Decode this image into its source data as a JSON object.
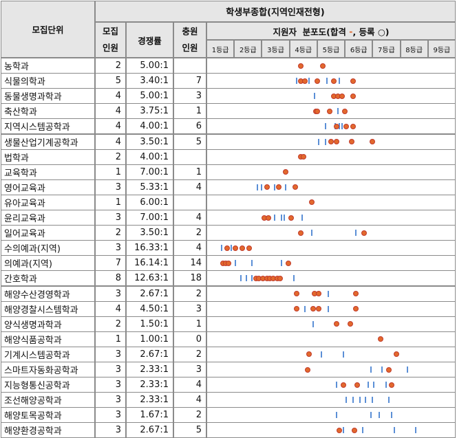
{
  "header": {
    "unit": "모집단위",
    "section": "학생부종합(지역인재전형)",
    "recruit_top": "모집",
    "recruit_bottom": "인원",
    "competition": "경쟁률",
    "fill_top": "충원",
    "fill_bottom": "인원",
    "distribution_prefix": "지원자  분포도(합격 ",
    "distribution_pass_mark": "-",
    "distribution_suffix": ", 등록 ○)",
    "grades": [
      "1등급",
      "2등급",
      "3등급",
      "4등급",
      "5등급",
      "6등급",
      "7등급",
      "8등급",
      "9등급"
    ]
  },
  "colors": {
    "registered": "#e2692d",
    "passed": "#5b8fd6"
  },
  "rows": [
    {
      "name": "농학과",
      "recruit": "2",
      "ratio": "5.00:1",
      "fill": "",
      "reg": [
        4.3,
        5.1
      ],
      "pass": []
    },
    {
      "name": "식물의학과",
      "recruit": "5",
      "ratio": "3.40:1",
      "fill": "7",
      "reg": [
        4.3,
        4.45,
        4.9,
        5.5,
        6.2
      ],
      "pass": [
        4.15,
        4.6,
        5.25,
        5.7
      ]
    },
    {
      "name": "동물생명과학과",
      "recruit": "4",
      "ratio": "5.00:1",
      "fill": "3",
      "reg": [
        5.5,
        5.65,
        5.8,
        6.2
      ],
      "pass": [
        4.8
      ]
    },
    {
      "name": "축산학과",
      "recruit": "4",
      "ratio": "3.75:1",
      "fill": "1",
      "reg": [
        4.85,
        4.9,
        5.35,
        5.9
      ],
      "pass": [
        5.65
      ]
    },
    {
      "name": "지역시스템공학과",
      "recruit": "4",
      "ratio": "4.00:1",
      "fill": "6",
      "reg": [
        5.6,
        5.95,
        6.2
      ],
      "pass": [
        5.2,
        5.55,
        5.7,
        5.8
      ]
    },
    {
      "name": "생물산업기계공학과",
      "recruit": "4",
      "ratio": "3.50:1",
      "fill": "5",
      "reg": [
        5.4,
        5.6,
        6.15,
        6.9
      ],
      "pass": [
        4.95,
        5.2
      ]
    },
    {
      "name": "법학과",
      "recruit": "2",
      "ratio": "4.00:1",
      "fill": "",
      "reg": [
        4.3,
        4.4
      ],
      "pass": []
    },
    {
      "name": "교육학과",
      "recruit": "1",
      "ratio": "7.00:1",
      "fill": "1",
      "reg": [
        3.75
      ],
      "pass": []
    },
    {
      "name": "영어교육과",
      "recruit": "3",
      "ratio": "5.33:1",
      "fill": "4",
      "reg": [
        3.1,
        3.5,
        4.1
      ],
      "pass": [
        2.75,
        2.9,
        3.35,
        3.75
      ]
    },
    {
      "name": "유아교육과",
      "recruit": "1",
      "ratio": "6.00:1",
      "fill": "",
      "reg": [
        4.7
      ],
      "pass": []
    },
    {
      "name": "윤리교육과",
      "recruit": "3",
      "ratio": "7.00:1",
      "fill": "4",
      "reg": [
        3.0,
        3.15,
        3.95
      ],
      "pass": [
        3.35,
        3.6,
        3.7,
        4.35
      ]
    },
    {
      "name": "일어교육과",
      "recruit": "2",
      "ratio": "3.50:1",
      "fill": "2",
      "reg": [
        4.3,
        6.6
      ],
      "pass": [
        4.7,
        6.3
      ]
    },
    {
      "name": "수의예과(지역)",
      "recruit": "3",
      "ratio": "16.33:1",
      "fill": "4",
      "reg": [
        1.65,
        1.95,
        2.2,
        2.45
      ],
      "pass": [
        1.45,
        1.8
      ]
    },
    {
      "name": "의예과(지역)",
      "recruit": "7",
      "ratio": "16.14:1",
      "fill": "14",
      "reg": [
        1.5,
        1.6,
        1.7,
        3.85
      ],
      "pass": [
        1.95,
        2.55,
        3.6
      ]
    },
    {
      "name": "간호학과",
      "recruit": "8",
      "ratio": "12.63:1",
      "fill": "18",
      "reg": [
        2.7,
        2.8,
        2.95,
        3.1,
        3.2,
        3.3,
        3.45,
        3.55
      ],
      "pass": [
        2.15,
        2.35,
        2.55,
        4.05
      ]
    },
    {
      "name": "해양수산경영학과",
      "recruit": "3",
      "ratio": "2.67:1",
      "fill": "2",
      "reg": [
        4.15,
        4.8,
        4.95,
        6.3
      ],
      "pass": [
        5.3
      ]
    },
    {
      "name": "해양경찰시스템학과",
      "recruit": "4",
      "ratio": "4.50:1",
      "fill": "3",
      "reg": [
        4.15,
        4.75,
        4.95,
        6.3
      ],
      "pass": [
        4.45,
        5.3
      ]
    },
    {
      "name": "양식생명과학과",
      "recruit": "2",
      "ratio": "1.50:1",
      "fill": "1",
      "reg": [
        5.6,
        6.1
      ],
      "pass": [
        4.75
      ]
    },
    {
      "name": "해양식품공학과",
      "recruit": "1",
      "ratio": "1.00:1",
      "fill": "0",
      "reg": [
        7.2
      ],
      "pass": []
    },
    {
      "name": "기계시스템공학과",
      "recruit": "3",
      "ratio": "2.67:1",
      "fill": "2",
      "reg": [
        4.6,
        7.75
      ],
      "pass": [
        5.05,
        5.85
      ]
    },
    {
      "name": "스마트자동화공학과",
      "recruit": "3",
      "ratio": "2.33:1",
      "fill": "3",
      "reg": [
        4.55,
        7.5
      ],
      "pass": [
        6.85,
        7.25,
        8.15
      ]
    },
    {
      "name": "지능형통신공학과",
      "recruit": "3",
      "ratio": "2.33:1",
      "fill": "4",
      "reg": [
        5.85,
        6.35,
        7.6
      ],
      "pass": [
        5.6,
        6.75,
        6.95,
        7.4
      ]
    },
    {
      "name": "조선해양공학과",
      "recruit": "3",
      "ratio": "2.33:1",
      "fill": "4",
      "reg": [],
      "pass": [
        5.95,
        6.2,
        6.45,
        6.65,
        6.9,
        7.5
      ]
    },
    {
      "name": "해양토목공학과",
      "recruit": "3",
      "ratio": "1.67:1",
      "fill": "2",
      "reg": [],
      "pass": [
        5.6,
        6.85,
        7.15,
        7.6
      ]
    },
    {
      "name": "해양환경공학과",
      "recruit": "3",
      "ratio": "2.67:1",
      "fill": "5",
      "reg": [
        5.7,
        6.25
      ],
      "pass": [
        5.85,
        6.55,
        7.7,
        8.45
      ]
    }
  ]
}
